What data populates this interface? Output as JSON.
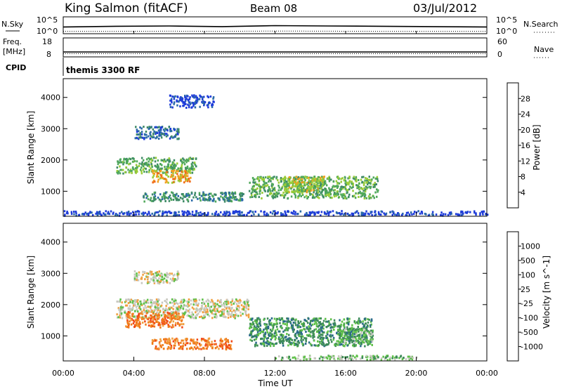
{
  "header": {
    "radar": "King Salmon (fitACF)",
    "beam": "Beam 08",
    "date": "03/Jul/2012"
  },
  "cpid_label": "CPID",
  "cpid_value": "themis 3300 RF",
  "colors": {
    "power": [
      "#1f3cd9",
      "#2a6aa8",
      "#3e8a66",
      "#4fa85a",
      "#9acc37",
      "#f0a020",
      "#f06a18",
      "#e83018"
    ],
    "velocity": [
      "#e02020",
      "#f04a18",
      "#f07a18",
      "#f0a040",
      "#c8c8c0",
      "#5ec048",
      "#3c8a58",
      "#2a6a8a",
      "#1f3cd9"
    ]
  },
  "chart_data": [
    {
      "type": "line",
      "name": "noise-panel",
      "left_label": "N.Sky",
      "right_label": "N.Search",
      "left_ticks": [
        "10^5",
        "10^0"
      ],
      "right_ticks": [
        "10^5",
        "10^0"
      ],
      "x": [
        0,
        3,
        6,
        9,
        12,
        15,
        18,
        21,
        24
      ],
      "series": [
        {
          "label": "N.Sky",
          "style": "solid",
          "values": [
            2.0,
            2.2,
            2.3,
            2.1,
            2.4,
            2.3,
            2.2,
            2.1,
            2.0
          ]
        },
        {
          "label": "N.Search",
          "style": "dotted",
          "values": [
            0.7,
            0.7,
            0.75,
            0.7,
            0.8,
            0.75,
            0.7,
            0.7,
            0.7
          ]
        }
      ],
      "ylim": [
        0,
        5
      ]
    },
    {
      "type": "line",
      "name": "frequency-panel",
      "left_label": "Freq.",
      "left_unit": "[MHz]",
      "right_label": "Nave",
      "left_ticks": [
        "18",
        "8"
      ],
      "right_ticks": [
        "60",
        "0"
      ],
      "x": [
        0,
        3,
        6,
        9,
        12,
        15,
        18,
        21,
        24
      ],
      "series": [
        {
          "label": "Freq.",
          "style": "solid",
          "values": [
            10.6,
            10.6,
            10.6,
            10.6,
            10.6,
            10.6,
            10.6,
            10.6,
            10.6
          ]
        },
        {
          "label": "Nave",
          "style": "dotted",
          "values": [
            9.7,
            9.7,
            9.7,
            9.7,
            9.7,
            9.7,
            9.7,
            9.7,
            9.7
          ]
        }
      ],
      "ylim": [
        8,
        18
      ]
    },
    {
      "type": "heatmap",
      "name": "power-panel",
      "ylabel": "Slant Range [km]",
      "yticks": [
        1000,
        2000,
        3000,
        4000
      ],
      "ylim": [
        200,
        4600
      ],
      "xlim": [
        0,
        24
      ],
      "colorbar_label": "Power [dB]",
      "colorbar_ticks": [
        "4",
        "8",
        "12",
        "16",
        "20",
        "24",
        "28"
      ],
      "regions": [
        {
          "t": [
            3.0,
            7.5
          ],
          "r": [
            1600,
            2100
          ],
          "level": 3
        },
        {
          "t": [
            5.0,
            7.2
          ],
          "r": [
            1300,
            1700
          ],
          "level": 5
        },
        {
          "t": [
            4.5,
            10.2
          ],
          "r": [
            700,
            1000
          ],
          "level": 2
        },
        {
          "t": [
            10.5,
            17.8
          ],
          "r": [
            800,
            1500
          ],
          "level": 3
        },
        {
          "t": [
            12.5,
            14.8
          ],
          "r": [
            1000,
            1500
          ],
          "level": 4
        },
        {
          "t": [
            4.0,
            6.5
          ],
          "r": [
            2700,
            3100
          ],
          "level": 1
        },
        {
          "t": [
            6.0,
            8.5
          ],
          "r": [
            3700,
            4100
          ],
          "level": 0
        },
        {
          "t": [
            0,
            24
          ],
          "r": [
            250,
            400
          ],
          "level": 0
        }
      ]
    },
    {
      "type": "heatmap",
      "name": "velocity-panel",
      "ylabel": "Slant Range [km]",
      "yticks": [
        1000,
        2000,
        3000,
        4000
      ],
      "ylim": [
        200,
        4600
      ],
      "xlim": [
        0,
        24
      ],
      "xlabel": "Time UT",
      "xticks": [
        "00:00",
        "04:00",
        "08:00",
        "12:00",
        "16:00",
        "20:00",
        "00:00"
      ],
      "colorbar_label": "Velocity [m s^-1]",
      "colorbar_ticks": [
        "-1000",
        "-500",
        "-100",
        "-25",
        "25",
        "100",
        "500",
        "1000"
      ],
      "regions": [
        {
          "t": [
            3.0,
            10.5
          ],
          "r": [
            1600,
            2200
          ],
          "level": 4
        },
        {
          "t": [
            3.5,
            6.8
          ],
          "r": [
            1300,
            1800
          ],
          "level": 2
        },
        {
          "t": [
            5.0,
            9.5
          ],
          "r": [
            600,
            950
          ],
          "level": 2
        },
        {
          "t": [
            10.5,
            17.5
          ],
          "r": [
            700,
            1600
          ],
          "level": 6
        },
        {
          "t": [
            15.5,
            17.5
          ],
          "r": [
            800,
            1300
          ],
          "level": 5
        },
        {
          "t": [
            4.0,
            6.5
          ],
          "r": [
            2700,
            3100
          ],
          "level": 4
        },
        {
          "t": [
            12.0,
            20.0
          ],
          "r": [
            250,
            400
          ],
          "level": 5
        }
      ]
    }
  ]
}
